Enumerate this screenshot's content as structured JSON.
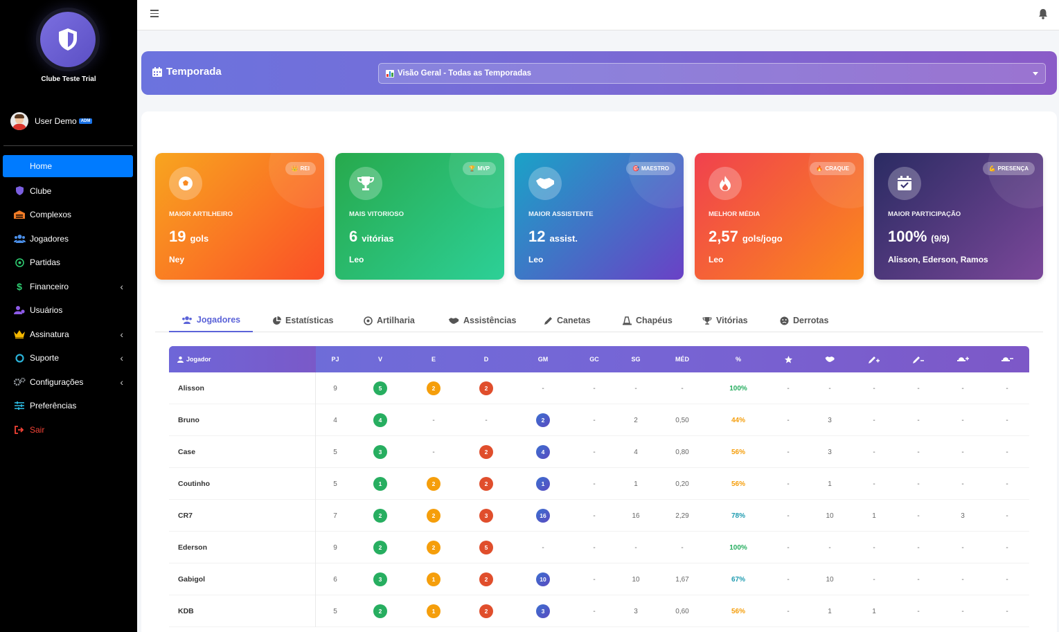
{
  "sidebar": {
    "club_name": "Clube Teste Trial",
    "user": {
      "name": "User Demo",
      "badge": "ADM"
    },
    "items": [
      {
        "label": "Home",
        "icon": "home-icon",
        "active": true
      },
      {
        "label": "Clube",
        "icon": "shield-icon"
      },
      {
        "label": "Complexos",
        "icon": "warehouse-icon"
      },
      {
        "label": "Jogadores",
        "icon": "users-icon"
      },
      {
        "label": "Partidas",
        "icon": "soccer-ball-icon"
      },
      {
        "label": "Financeiro",
        "icon": "dollar-icon",
        "chevron": true
      },
      {
        "label": "Usuários",
        "icon": "users-cog-icon"
      },
      {
        "label": "Assinatura",
        "icon": "crown-icon",
        "chevron": true
      },
      {
        "label": "Suporte",
        "icon": "lifebuoy-icon",
        "chevron": true
      },
      {
        "label": "Configurações",
        "icon": "gears-icon",
        "chevron": true
      },
      {
        "label": "Preferências",
        "icon": "sliders-icon"
      },
      {
        "label": "Sair",
        "icon": "sign-out-icon"
      }
    ]
  },
  "season": {
    "title": "Temporada",
    "selected": "Visão Geral - Todas as Temporadas"
  },
  "stats": [
    {
      "badge": "REI",
      "label": "Maior Artilheiro",
      "value": "19",
      "unit": "gols",
      "who": "Ney",
      "icon": "soccer-ball-icon",
      "badge_icon": "crown-icon"
    },
    {
      "badge": "MVP",
      "label": "Mais Vitorioso",
      "value": "6",
      "unit": "vitórias",
      "who": "Leo",
      "icon": "trophy-icon",
      "badge_icon": "trophy-icon"
    },
    {
      "badge": "MAESTRO",
      "label": "Maior Assistente",
      "value": "12",
      "unit": "assist.",
      "who": "Leo",
      "icon": "handshake-icon",
      "badge_icon": "target-icon"
    },
    {
      "badge": "CRAQUE",
      "label": "Melhor Média",
      "value": "2,57",
      "unit": "gols/jogo",
      "who": "Leo",
      "icon": "fire-icon",
      "badge_icon": "fire-icon"
    },
    {
      "badge": "PRESENÇA",
      "label": "Maior Participação",
      "value": "100%",
      "unit": "(9/9)",
      "who": "Alisson, Ederson, Ramos",
      "icon": "calendar-check-icon",
      "badge_icon": "muscle-icon"
    }
  ],
  "tabs": [
    {
      "label": "Jogadores",
      "icon": "users-icon",
      "active": true
    },
    {
      "label": "Estatísticas",
      "icon": "pie-chart-icon"
    },
    {
      "label": "Artilharia",
      "icon": "soccer-ball-icon"
    },
    {
      "label": "Assistências",
      "icon": "handshake-icon"
    },
    {
      "label": "Canetas",
      "icon": "pen-icon"
    },
    {
      "label": "Chapéus",
      "icon": "hat-icon"
    },
    {
      "label": "Vitórias",
      "icon": "trophy-icon"
    },
    {
      "label": "Derrotas",
      "icon": "sad-face-icon"
    }
  ],
  "table": {
    "headers": [
      "Jogador",
      "PJ",
      "V",
      "E",
      "D",
      "GM",
      "GC",
      "SG",
      "MÉD",
      "%"
    ],
    "icon_headers": [
      "star-icon",
      "handshake-icon",
      "pen-plus-icon",
      "pen-minus-icon",
      "hat-plus-icon",
      "hat-minus-icon"
    ],
    "rows": [
      {
        "name": "Alisson",
        "pj": "9",
        "v": "5",
        "e": "2",
        "d": "2",
        "gm": "-",
        "gc": "-",
        "sg": "-",
        "med": "-",
        "pct": "100%",
        "pct_color": "#27ae60",
        "c1": "-",
        "c2": "-",
        "c3": "-",
        "c4": "-",
        "c5": "-",
        "c6": "-"
      },
      {
        "name": "Bruno",
        "pj": "4",
        "v": "4",
        "e": "-",
        "d": "-",
        "gm": "2",
        "gc": "-",
        "sg": "2",
        "med": "0,50",
        "pct": "44%",
        "pct_color": "#f59e0b",
        "c1": "-",
        "c2": "3",
        "c3": "-",
        "c4": "-",
        "c5": "-",
        "c6": "-"
      },
      {
        "name": "Case",
        "pj": "5",
        "v": "3",
        "e": "-",
        "d": "2",
        "gm": "4",
        "gc": "-",
        "sg": "4",
        "med": "0,80",
        "pct": "56%",
        "pct_color": "#f59e0b",
        "c1": "-",
        "c2": "3",
        "c3": "-",
        "c4": "-",
        "c5": "-",
        "c6": "-"
      },
      {
        "name": "Coutinho",
        "pj": "5",
        "v": "1",
        "e": "2",
        "d": "2",
        "gm": "1",
        "gc": "-",
        "sg": "1",
        "med": "0,20",
        "pct": "56%",
        "pct_color": "#f59e0b",
        "c1": "-",
        "c2": "1",
        "c3": "-",
        "c4": "-",
        "c5": "-",
        "c6": "-"
      },
      {
        "name": "CR7",
        "pj": "7",
        "v": "2",
        "e": "2",
        "d": "3",
        "gm": "16",
        "gc": "-",
        "sg": "16",
        "med": "2,29",
        "pct": "78%",
        "pct_color": "#1e9bb0",
        "c1": "-",
        "c2": "10",
        "c3": "1",
        "c4": "-",
        "c5": "3",
        "c6": "-"
      },
      {
        "name": "Ederson",
        "pj": "9",
        "v": "2",
        "e": "2",
        "d": "5",
        "gm": "-",
        "gc": "-",
        "sg": "-",
        "med": "-",
        "pct": "100%",
        "pct_color": "#27ae60",
        "c1": "-",
        "c2": "-",
        "c3": "-",
        "c4": "-",
        "c5": "-",
        "c6": "-"
      },
      {
        "name": "Gabigol",
        "pj": "6",
        "v": "3",
        "e": "1",
        "d": "2",
        "gm": "10",
        "gc": "-",
        "sg": "10",
        "med": "1,67",
        "pct": "67%",
        "pct_color": "#1e9bb0",
        "c1": "-",
        "c2": "10",
        "c3": "-",
        "c4": "-",
        "c5": "-",
        "c6": "-"
      },
      {
        "name": "KDB",
        "pj": "5",
        "v": "2",
        "e": "1",
        "d": "2",
        "gm": "3",
        "gc": "-",
        "sg": "3",
        "med": "0,60",
        "pct": "56%",
        "pct_color": "#f59e0b",
        "c1": "-",
        "c2": "1",
        "c3": "1",
        "c4": "-",
        "c5": "-",
        "c6": "-"
      }
    ]
  },
  "colors": {
    "accent": "#007bff",
    "banner": "#7b6ad4",
    "card_gradients": [
      [
        "#f8a51f",
        "#fb4f27"
      ],
      [
        "#27a94c",
        "#2dd097"
      ],
      [
        "#1aa3c7",
        "#6a41c6"
      ],
      [
        "#f0414e",
        "#fb8a1b"
      ],
      [
        "#2a2b62",
        "#7b489a"
      ]
    ]
  }
}
